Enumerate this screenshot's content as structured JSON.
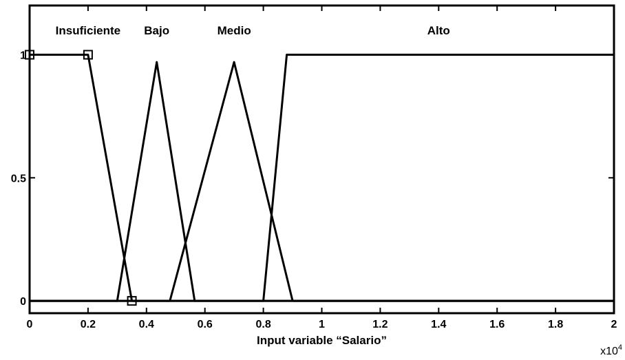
{
  "chart_data": {
    "type": "line",
    "title": "",
    "xlabel": "Input variable “Salario”",
    "ylabel": "",
    "xlim": [
      0,
      20000
    ],
    "ylim": [
      -0.05,
      1.2
    ],
    "x_exponent_label": "x10",
    "x_exponent_power": "4",
    "x_ticks": [
      {
        "value": 0,
        "label": "0"
      },
      {
        "value": 2000,
        "label": "0.2"
      },
      {
        "value": 4000,
        "label": "0.4"
      },
      {
        "value": 6000,
        "label": "0.6"
      },
      {
        "value": 8000,
        "label": "0.8"
      },
      {
        "value": 10000,
        "label": "1"
      },
      {
        "value": 12000,
        "label": "1.2"
      },
      {
        "value": 14000,
        "label": "1.4"
      },
      {
        "value": 16000,
        "label": "1.6"
      },
      {
        "value": 18000,
        "label": "1.8"
      },
      {
        "value": 20000,
        "label": "2"
      }
    ],
    "y_ticks": [
      {
        "value": 0,
        "label": "0"
      },
      {
        "value": 0.5,
        "label": "0.5"
      },
      {
        "value": 1,
        "label": "1"
      }
    ],
    "series": [
      {
        "name": "Insuficiente",
        "x": [
          0,
          2000,
          3500,
          20000
        ],
        "y": [
          1,
          1,
          0,
          0
        ],
        "label_x": 2000,
        "markers": true
      },
      {
        "name": "Bajo",
        "x": [
          0,
          3000,
          4350,
          5650,
          20000
        ],
        "y": [
          0,
          0,
          0.97,
          0,
          0
        ],
        "label_x": 4350,
        "markers": false
      },
      {
        "name": "Medio",
        "x": [
          0,
          4800,
          7000,
          9000,
          20000
        ],
        "y": [
          0,
          0,
          0.97,
          0,
          0
        ],
        "label_x": 7000,
        "markers": false
      },
      {
        "name": "Alto",
        "x": [
          0,
          8000,
          8800,
          20000
        ],
        "y": [
          0,
          0,
          1,
          1
        ],
        "label_x": 14000,
        "markers": false
      }
    ],
    "grid": false,
    "legend": "none"
  }
}
